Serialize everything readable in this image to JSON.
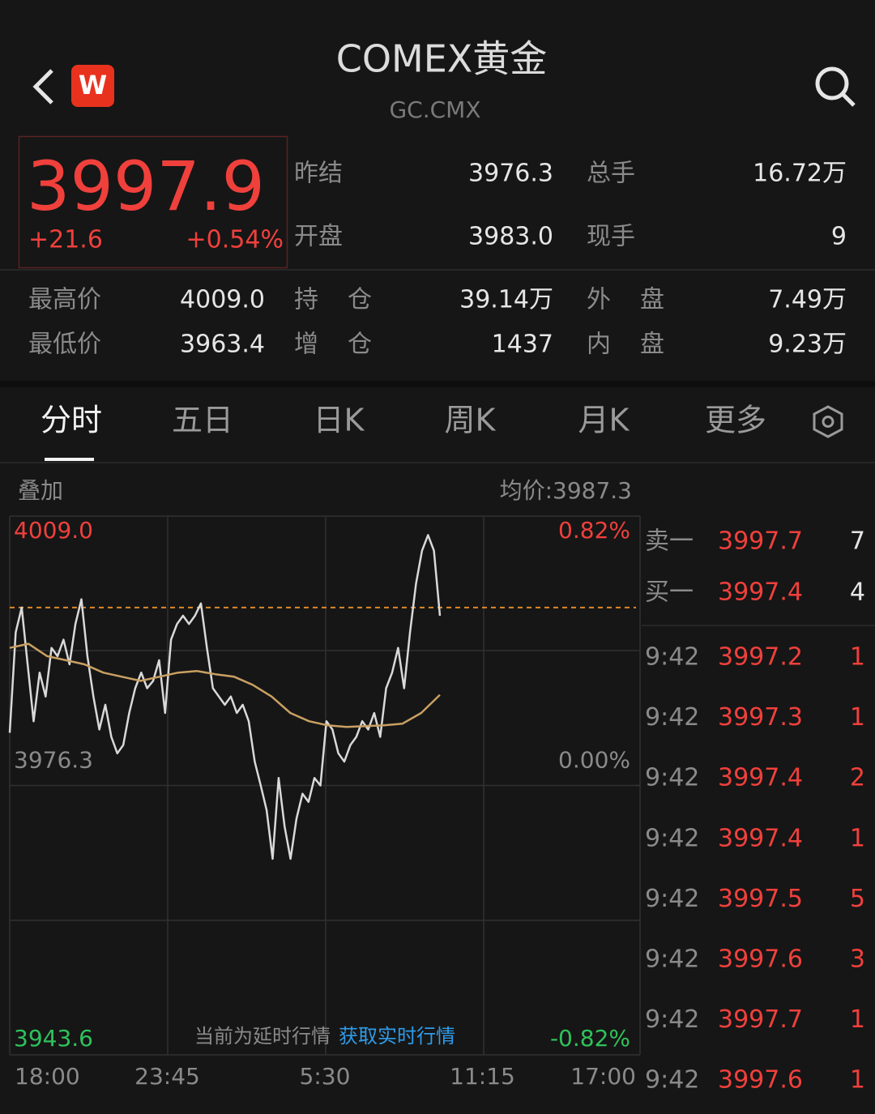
{
  "header": {
    "title": "COMEX黄金",
    "code": "GC.CMX"
  },
  "quote": {
    "price": "3997.9",
    "change": "+21.6",
    "change_pct": "+0.54%"
  },
  "stats": {
    "top": [
      [
        {
          "label": "昨结",
          "value": "3976.3"
        },
        {
          "label": "总手",
          "value": "16.72万"
        }
      ],
      [
        {
          "label": "开盘",
          "value": "3983.0"
        },
        {
          "label": "现手",
          "value": "9"
        }
      ]
    ],
    "bottom": [
      [
        {
          "label": "最高价",
          "value": "4009.0"
        },
        {
          "label": "持仓",
          "value": "39.14万"
        },
        {
          "label": "外盘",
          "value": "7.49万"
        }
      ],
      [
        {
          "label": "最低价",
          "value": "3963.4"
        },
        {
          "label": "增仓",
          "value": "1437"
        },
        {
          "label": "内盘",
          "value": "9.23万"
        }
      ]
    ]
  },
  "tabs": [
    "分时",
    "五日",
    "日K",
    "周K",
    "月K",
    "更多"
  ],
  "toolbar": {
    "overlay": "叠加",
    "avg": "均价:3987.3"
  },
  "notice": {
    "text": "当前为延时行情",
    "link": "获取实时行情"
  },
  "chart_data": {
    "type": "line",
    "x_labels": [
      "18:00",
      "23:45",
      "5:30",
      "11:15",
      "17:00"
    ],
    "ylim": [
      3943.6,
      4009
    ],
    "yticks": [
      3943.6,
      3976.3,
      {
        "value": 4009,
        "label": "4009.0"
      }
    ],
    "y2lim": [
      -0.82,
      0.82
    ],
    "y2ticks": [
      {
        "value": -0.82,
        "label": "-0.82%"
      },
      {
        "value": 0,
        "label": "0.00%"
      },
      {
        "value": 0.82,
        "label": "0.82%"
      }
    ],
    "price_line": {
      "value": 3997.9,
      "color": "#e0882a"
    },
    "series": [
      {
        "color": "#d9d9d9",
        "values": [
          3982.7,
          3994.9,
          3997.9,
          3991.0,
          3984.1,
          3990.0,
          3987.1,
          3993.0,
          3992.0,
          3994.0,
          3991.0,
          3995.9,
          3998.9,
          3992.0,
          3987.1,
          3983.1,
          3986.1,
          3982.2,
          3980.2,
          3981.2,
          3985.1,
          3988.1,
          3990.0,
          3988.1,
          3989.0,
          3991.5,
          3985.1,
          3994.0,
          3995.9,
          3996.9,
          3995.9,
          3996.9,
          3998.4,
          3993.0,
          3988.1,
          3987.1,
          3986.1,
          3987.1,
          3985.1,
          3986.1,
          3984.1,
          3979.2,
          3976.3,
          3973.3,
          3967.4,
          3977.2,
          3971.3,
          3967.4,
          3972.3,
          3975.3,
          3974.3,
          3977.2,
          3976.3,
          3984.1,
          3983.1,
          3980.2,
          3979.2,
          3981.2,
          3982.2,
          3984.1,
          3983.1,
          3985.1,
          3982.2,
          3988.1,
          3990.0,
          3993.0,
          3988.1,
          3994.9,
          4000.8,
          4004.8,
          4006.7,
          4004.8,
          3996.9
        ]
      },
      {
        "color": "#c9a063",
        "values": [
          3993.0,
          3993.5,
          3992.0,
          3991.5,
          3991.0,
          3990.0,
          3989.5,
          3989.0,
          3989.5,
          3990.0,
          3990.2,
          3989.8,
          3989.5,
          3988.5,
          3987.1,
          3985.1,
          3984.1,
          3983.6,
          3983.4,
          3983.5,
          3983.6,
          3983.8,
          3985.1,
          3987.3
        ]
      }
    ]
  },
  "order_book": [
    {
      "label": "卖一",
      "price": "3997.7",
      "qty": "7"
    },
    {
      "label": "买一",
      "price": "3997.4",
      "qty": "4"
    }
  ],
  "trades": [
    {
      "time": "9:42",
      "price": "3997.2",
      "qty": "1"
    },
    {
      "time": "9:42",
      "price": "3997.3",
      "qty": "1"
    },
    {
      "time": "9:42",
      "price": "3997.4",
      "qty": "2"
    },
    {
      "time": "9:42",
      "price": "3997.4",
      "qty": "1"
    },
    {
      "time": "9:42",
      "price": "3997.5",
      "qty": "5"
    },
    {
      "time": "9:42",
      "price": "3997.6",
      "qty": "3"
    },
    {
      "time": "9:42",
      "price": "3997.7",
      "qty": "1"
    },
    {
      "time": "9:42",
      "price": "3997.6",
      "qty": "1"
    }
  ]
}
